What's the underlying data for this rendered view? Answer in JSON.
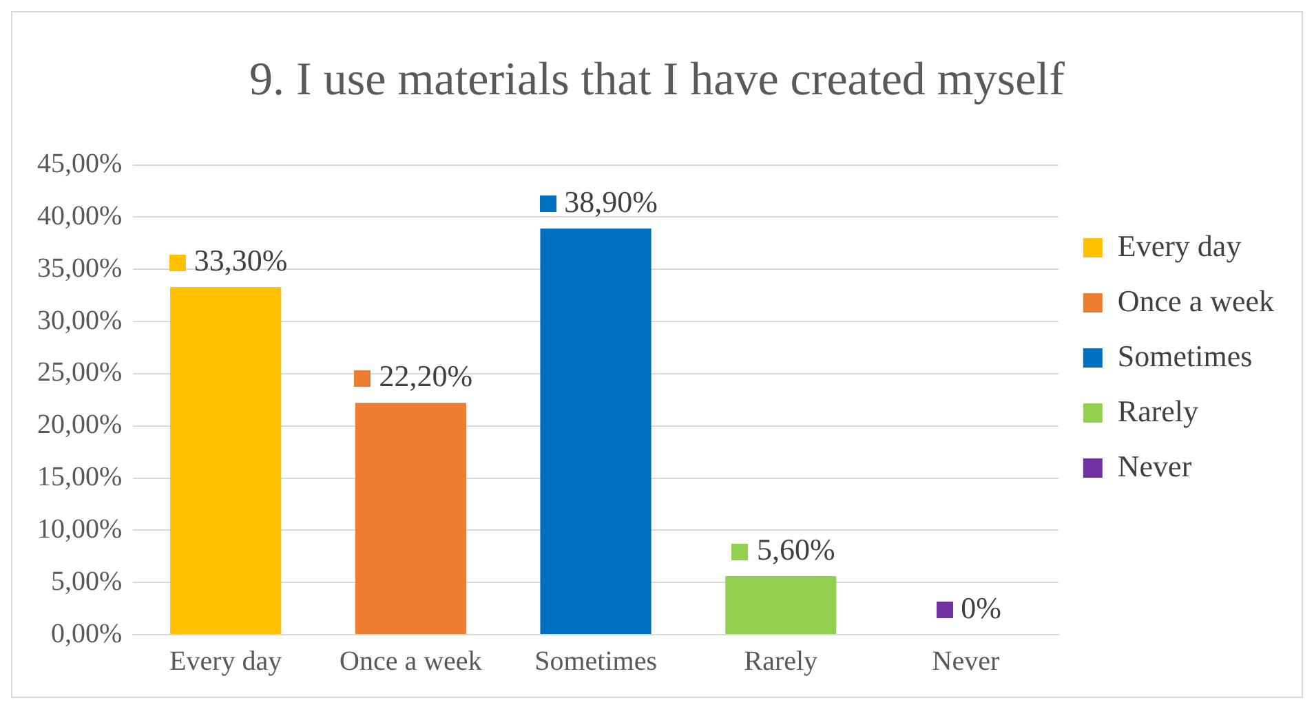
{
  "chart_data": {
    "type": "bar",
    "title": "9. I use materials that I have created myself",
    "categories": [
      "Every day",
      "Once a week",
      "Sometimes",
      "Rarely",
      "Never"
    ],
    "series": [
      {
        "name": "Every day",
        "color": "#ffc000",
        "values": [
          33.3,
          null,
          null,
          null,
          null
        ],
        "value_labels": [
          "33,30%",
          null,
          null,
          null,
          null
        ]
      },
      {
        "name": "Once a week",
        "color": "#ed7d31",
        "values": [
          null,
          22.2,
          null,
          null,
          null
        ],
        "value_labels": [
          null,
          "22,20%",
          null,
          null,
          null
        ]
      },
      {
        "name": "Sometimes",
        "color": "#0070c0",
        "values": [
          null,
          null,
          38.9,
          null,
          null
        ],
        "value_labels": [
          null,
          null,
          "38,90%",
          null,
          null
        ]
      },
      {
        "name": "Rarely",
        "color": "#92d050",
        "values": [
          null,
          null,
          null,
          5.6,
          null
        ],
        "value_labels": [
          null,
          null,
          null,
          "5,60%",
          null
        ]
      },
      {
        "name": "Never",
        "color": "#7030a0",
        "values": [
          null,
          null,
          null,
          null,
          0
        ],
        "value_labels": [
          null,
          null,
          null,
          null,
          "0%"
        ]
      }
    ],
    "stacked": true,
    "ylim": [
      0,
      45
    ],
    "yticks": [
      {
        "value": 0,
        "label": "0,00%"
      },
      {
        "value": 5,
        "label": "5,00%"
      },
      {
        "value": 10,
        "label": "10,00%"
      },
      {
        "value": 15,
        "label": "15,00%"
      },
      {
        "value": 20,
        "label": "20,00%"
      },
      {
        "value": 25,
        "label": "25,00%"
      },
      {
        "value": 30,
        "label": "30,00%"
      },
      {
        "value": 35,
        "label": "35,00%"
      },
      {
        "value": 40,
        "label": "40,00%"
      },
      {
        "value": 45,
        "label": "45,00%"
      }
    ],
    "grid": "y",
    "legend": "right"
  }
}
